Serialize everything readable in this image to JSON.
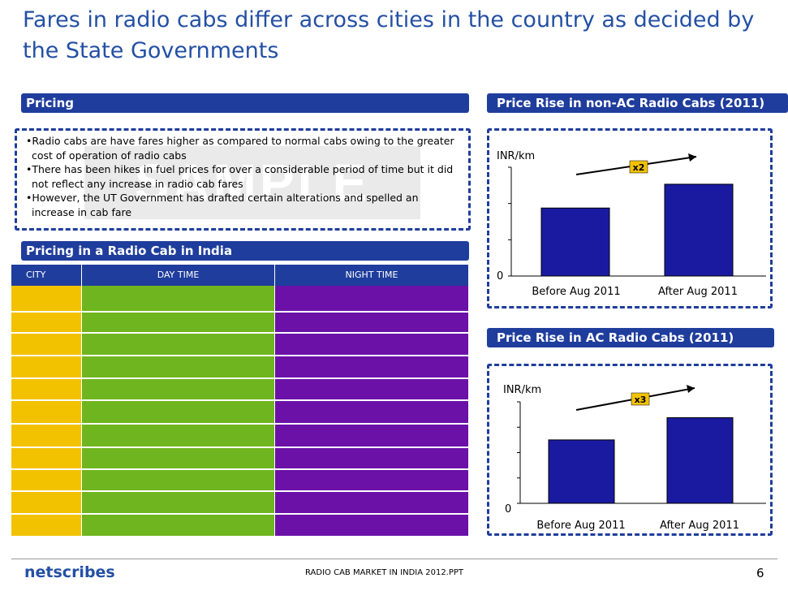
{
  "title": "Fares in radio cabs differ across cities in the country as decided by the State Governments",
  "pricing_header": "Pricing",
  "bullets": [
    "•Radio cabs are have fares higher as compared to normal cabs owing to the greater cost of operation of radio cabs",
    "•There has been hikes in fuel prices for over a considerable period of time but it did not reflect any increase in radio cab fares",
    "•However, the UT Government has drafted certain alterations and spelled an increase in cab fare"
  ],
  "watermark": "SAMPLE",
  "table_header": "Pricing in a Radio Cab in India",
  "table": {
    "columns": [
      "CITY",
      "DAY TIME",
      "NIGHT TIME"
    ],
    "colors": [
      "#f2c200",
      "#6fb51f",
      "#6b11a8"
    ]
  },
  "chart_data": [
    {
      "type": "bar",
      "title": "Price Rise in non-AC Radio Cabs (2011)",
      "ylabel": "INR/km",
      "categories": [
        "Before Aug 2011",
        "After Aug 2011"
      ],
      "values": [
        1,
        1.35
      ],
      "ylim": [
        0,
        1.6
      ],
      "zero_label": "0",
      "annotation": "x2",
      "bar_color": "#1a1aa0"
    },
    {
      "type": "bar",
      "title": "Price Rise in AC Radio Cabs (2011)",
      "ylabel": "INR/km",
      "categories": [
        "Before Aug 2011",
        "After Aug 2011"
      ],
      "values": [
        1,
        1.35
      ],
      "ylim": [
        0,
        1.6
      ],
      "zero_label": "0",
      "annotation": "x3",
      "bar_color": "#1a1aa0"
    }
  ],
  "footer": {
    "logo": "netscribes",
    "center": "RADIO CAB MARKET IN INDIA 2012.PPT",
    "page": "6"
  }
}
